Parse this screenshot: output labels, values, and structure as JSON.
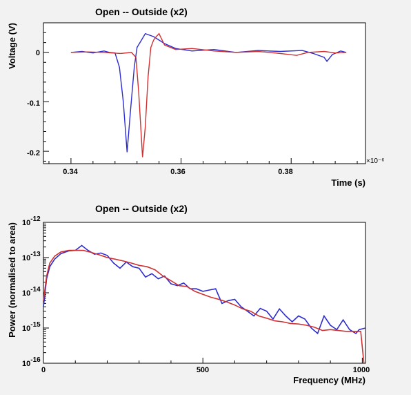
{
  "chart_data": [
    {
      "type": "line",
      "title": "Open -- Outside (x2)",
      "xlabel": "Time (s)",
      "ylabel": "Voltage (V)",
      "x_exponent_label": "×10⁻⁶",
      "xlim": [
        0.335,
        0.3935
      ],
      "ylim": [
        -0.225,
        0.06
      ],
      "xticks": [
        "0.34",
        "0.36",
        "0.38"
      ],
      "yticks": [
        "0",
        "-0.1",
        "-0.2"
      ],
      "grid": false,
      "series": [
        {
          "color": "#2b2bd0",
          "points": [
            [
              0.34,
              0.0
            ],
            [
              0.342,
              0.002
            ],
            [
              0.344,
              -0.001
            ],
            [
              0.346,
              0.003
            ],
            [
              0.347,
              0.0
            ],
            [
              0.348,
              -0.001
            ],
            [
              0.3488,
              -0.03
            ],
            [
              0.3495,
              -0.1
            ],
            [
              0.3502,
              -0.202
            ],
            [
              0.3508,
              -0.12
            ],
            [
              0.3515,
              -0.03
            ],
            [
              0.352,
              0.01
            ],
            [
              0.3528,
              0.025
            ],
            [
              0.3535,
              0.038
            ],
            [
              0.355,
              0.032
            ],
            [
              0.357,
              0.018
            ],
            [
              0.359,
              0.008
            ],
            [
              0.362,
              0.003
            ],
            [
              0.366,
              0.006
            ],
            [
              0.37,
              0.0
            ],
            [
              0.374,
              0.004
            ],
            [
              0.378,
              0.002
            ],
            [
              0.382,
              0.004
            ],
            [
              0.384,
              -0.002
            ],
            [
              0.386,
              -0.01
            ],
            [
              0.3865,
              -0.018
            ],
            [
              0.3875,
              -0.004
            ],
            [
              0.389,
              0.003
            ],
            [
              0.39,
              0.0
            ]
          ]
        },
        {
          "color": "#d03030",
          "points": [
            [
              0.34,
              0.0
            ],
            [
              0.343,
              0.001
            ],
            [
              0.346,
              0.0
            ],
            [
              0.349,
              -0.002
            ],
            [
              0.351,
              0.0
            ],
            [
              0.3518,
              -0.01
            ],
            [
              0.3523,
              -0.08
            ],
            [
              0.353,
              -0.212
            ],
            [
              0.3535,
              -0.15
            ],
            [
              0.354,
              -0.05
            ],
            [
              0.3545,
              0.01
            ],
            [
              0.355,
              0.025
            ],
            [
              0.3555,
              0.032
            ],
            [
              0.356,
              0.038
            ],
            [
              0.357,
              0.015
            ],
            [
              0.359,
              0.006
            ],
            [
              0.362,
              0.008
            ],
            [
              0.366,
              0.003
            ],
            [
              0.37,
              0.0
            ],
            [
              0.374,
              0.002
            ],
            [
              0.378,
              -0.002
            ],
            [
              0.381,
              -0.006
            ],
            [
              0.383,
              0.0
            ],
            [
              0.386,
              0.002
            ],
            [
              0.388,
              -0.001
            ],
            [
              0.39,
              0.0
            ]
          ]
        }
      ]
    },
    {
      "type": "line",
      "title": "Open -- Outside (x2)",
      "xlabel": "Frequency (MHz)",
      "ylabel": "Power (normalised to area)",
      "xlim": [
        0,
        1010
      ],
      "ylim_log10": [
        -16,
        -12
      ],
      "xticks": [
        "0",
        "500",
        "1000"
      ],
      "ytick_exponents": [
        "-12",
        "-13",
        "-14",
        "-15",
        "-16"
      ],
      "ytick_base": "10",
      "grid": false,
      "series": [
        {
          "color": "#2b2bd0",
          "points": [
            [
              0,
              4e-15
            ],
            [
              10,
              2.5e-14
            ],
            [
              20,
              5.5e-14
            ],
            [
              35,
              9e-14
            ],
            [
              55,
              1.3e-13
            ],
            [
              80,
              1.55e-13
            ],
            [
              100,
              1.6e-13
            ],
            [
              120,
              2.2e-13
            ],
            [
              140,
              1.6e-13
            ],
            [
              160,
              1.25e-13
            ],
            [
              180,
              1.35e-13
            ],
            [
              200,
              1.15e-13
            ],
            [
              220,
              7e-14
            ],
            [
              240,
              5e-14
            ],
            [
              260,
              7.5e-14
            ],
            [
              280,
              5.5e-14
            ],
            [
              300,
              5e-14
            ],
            [
              320,
              2.8e-14
            ],
            [
              340,
              3.5e-14
            ],
            [
              360,
              2.5e-14
            ],
            [
              380,
              3e-14
            ],
            [
              400,
              1.8e-14
            ],
            [
              420,
              1.6e-14
            ],
            [
              440,
              1.9e-14
            ],
            [
              460,
              1.3e-14
            ],
            [
              480,
              1.3e-14
            ],
            [
              500,
              1.1e-14
            ],
            [
              520,
              1.2e-14
            ],
            [
              540,
              1.3e-14
            ],
            [
              560,
              5e-15
            ],
            [
              580,
              6e-15
            ],
            [
              600,
              6.5e-15
            ],
            [
              620,
              4e-15
            ],
            [
              640,
              3e-15
            ],
            [
              660,
              2.2e-15
            ],
            [
              680,
              3.6e-15
            ],
            [
              700,
              3e-15
            ],
            [
              720,
              1.8e-15
            ],
            [
              740,
              3.5e-15
            ],
            [
              760,
              2.2e-15
            ],
            [
              780,
              1.5e-15
            ],
            [
              800,
              2.2e-15
            ],
            [
              820,
              1.8e-15
            ],
            [
              840,
              1e-15
            ],
            [
              860,
              7e-16
            ],
            [
              880,
              2.2e-15
            ],
            [
              900,
              1.2e-15
            ],
            [
              920,
              9e-16
            ],
            [
              940,
              1.7e-15
            ],
            [
              960,
              9e-16
            ],
            [
              980,
              7e-16
            ],
            [
              990,
              9e-16
            ],
            [
              1010,
              1e-15
            ]
          ]
        },
        {
          "color": "#d03030",
          "points": [
            [
              0,
              6e-15
            ],
            [
              10,
              3e-14
            ],
            [
              20,
              7e-14
            ],
            [
              35,
              1.1e-13
            ],
            [
              55,
              1.45e-13
            ],
            [
              80,
              1.6e-13
            ],
            [
              100,
              1.6e-13
            ],
            [
              125,
              1.6e-13
            ],
            [
              150,
              1.4e-13
            ],
            [
              175,
              1.2e-13
            ],
            [
              200,
              1e-13
            ],
            [
              225,
              9e-14
            ],
            [
              250,
              8e-14
            ],
            [
              275,
              7e-14
            ],
            [
              300,
              6e-14
            ],
            [
              325,
              5.5e-14
            ],
            [
              350,
              4.5e-14
            ],
            [
              375,
              3e-14
            ],
            [
              400,
              2.2e-14
            ],
            [
              425,
              1.6e-14
            ],
            [
              450,
              1.5e-14
            ],
            [
              475,
              1.1e-14
            ],
            [
              500,
              9e-15
            ],
            [
              525,
              7.5e-15
            ],
            [
              550,
              6.5e-15
            ],
            [
              575,
              5.5e-15
            ],
            [
              600,
              4.5e-15
            ],
            [
              625,
              3.5e-15
            ],
            [
              650,
              3e-15
            ],
            [
              675,
              2.2e-15
            ],
            [
              700,
              1.9e-15
            ],
            [
              725,
              1.6e-15
            ],
            [
              750,
              1.5e-15
            ],
            [
              775,
              1.35e-15
            ],
            [
              800,
              1.3e-15
            ],
            [
              825,
              1.2e-15
            ],
            [
              850,
              1.05e-15
            ],
            [
              875,
              8.5e-16
            ],
            [
              900,
              9e-16
            ],
            [
              925,
              8.5e-16
            ],
            [
              950,
              8e-16
            ],
            [
              975,
              8e-16
            ],
            [
              995,
              8e-16
            ],
            [
              1005,
              1e-16
            ]
          ]
        }
      ]
    }
  ]
}
